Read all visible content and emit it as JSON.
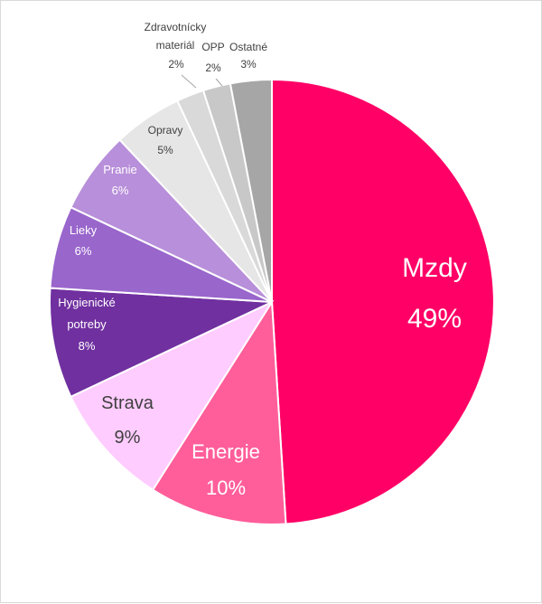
{
  "chart_data": {
    "type": "pie",
    "title": "",
    "slices": [
      {
        "label": "Mzdy",
        "value": 49,
        "value_label": "49%",
        "color": "#FF0066",
        "text_color": "#ffffff"
      },
      {
        "label": "Energie",
        "value": 10,
        "value_label": "10%",
        "color": "#FF5E9A",
        "text_color": "#ffffff"
      },
      {
        "label": "Strava",
        "value": 9,
        "value_label": "9%",
        "color": "#FFCCFF",
        "text_color": "#404040"
      },
      {
        "label": "Hygienické potreby",
        "value": 8,
        "value_label": "8%",
        "color": "#7030A0",
        "text_color": "#ffffff"
      },
      {
        "label": "Lieky",
        "value": 6,
        "value_label": "6%",
        "color": "#9966CC",
        "text_color": "#ffffff"
      },
      {
        "label": "Pranie",
        "value": 6,
        "value_label": "6%",
        "color": "#B88FDA",
        "text_color": "#ffffff"
      },
      {
        "label": "Opravy",
        "value": 5,
        "value_label": "5%",
        "color": "#E6E6E6",
        "text_color": "#404040"
      },
      {
        "label": "Zdravotnícky materiál",
        "value": 2,
        "value_label": "2%",
        "color": "#D9D9D9",
        "text_color": "#404040"
      },
      {
        "label": "OPP",
        "value": 2,
        "value_label": "2%",
        "color": "#C8C8C8",
        "text_color": "#404040"
      },
      {
        "label": "Ostatné",
        "value": 3,
        "value_label": "3%",
        "color": "#A6A6A6",
        "text_color": "#404040"
      }
    ],
    "legend": "none"
  }
}
